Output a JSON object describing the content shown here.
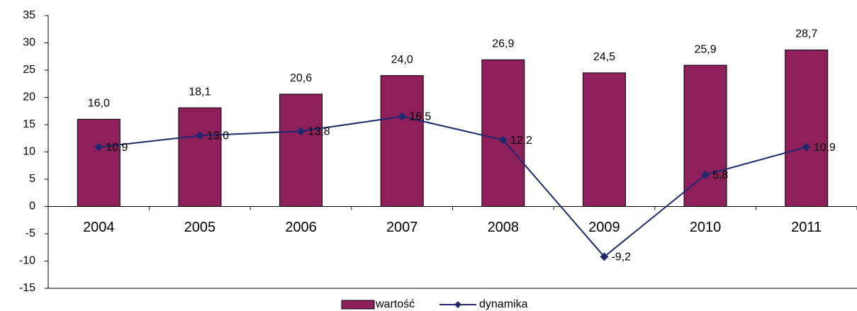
{
  "chart_data": {
    "type": "bar_line",
    "categories": [
      "2004",
      "2005",
      "2006",
      "2007",
      "2008",
      "2009",
      "2010",
      "2011"
    ],
    "series": [
      {
        "name": "wartość",
        "type": "bar",
        "color": "#8e1f5b",
        "values": [
          16.0,
          18.1,
          20.6,
          24.0,
          26.9,
          24.5,
          25.9,
          28.7
        ],
        "value_labels": [
          "16,0",
          "18,1",
          "20,6",
          "24,0",
          "26,9",
          "24,5",
          "25,9",
          "28,7"
        ]
      },
      {
        "name": "dynamika",
        "type": "line",
        "color": "#1f2a6e",
        "values": [
          10.9,
          13.0,
          13.8,
          16.5,
          12.2,
          -9.2,
          5.8,
          10.9
        ],
        "value_labels": [
          "10,9",
          "13,0",
          "13,8",
          "16,5",
          "12,2",
          "-9,2",
          "5,8",
          "10,9"
        ]
      }
    ],
    "ylim": [
      -15,
      35
    ],
    "yticks": [
      -15,
      -10,
      -5,
      0,
      5,
      10,
      15,
      20,
      25,
      30,
      35
    ],
    "grid": false,
    "legend": "bottom"
  }
}
